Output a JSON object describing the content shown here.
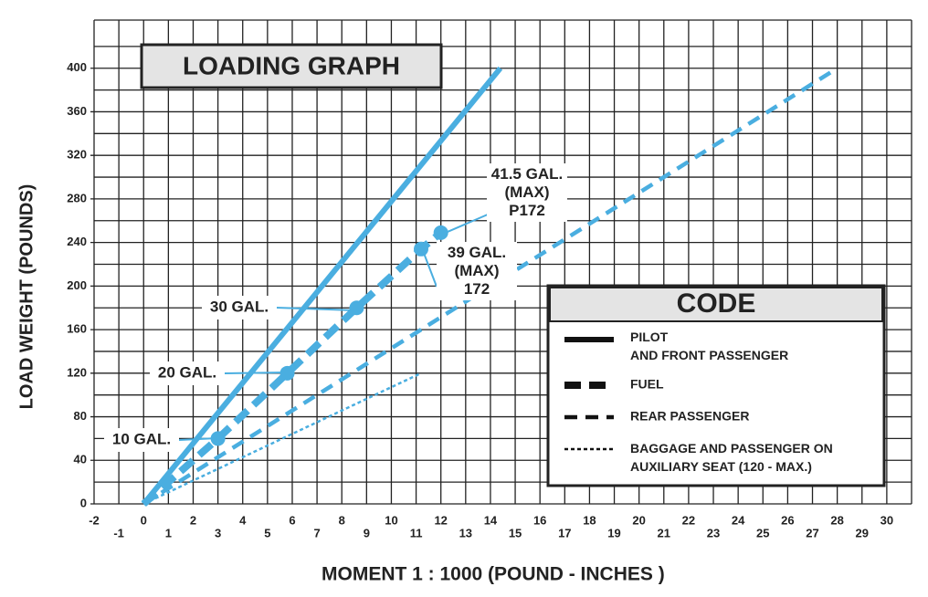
{
  "chart_data": {
    "type": "line",
    "title": "LOADING GRAPH",
    "x_label": "MOMENT  1 : 1000 (POUND - INCHES )",
    "y_label": "LOAD WEIGHT (POUNDS)",
    "xlim": [
      -2,
      31
    ],
    "ylim": [
      0,
      440
    ],
    "xticks": [
      -2,
      -1,
      0,
      1,
      2,
      3,
      4,
      5,
      6,
      7,
      8,
      9,
      10,
      11,
      12,
      13,
      14,
      15,
      16,
      17,
      18,
      19,
      20,
      21,
      22,
      23,
      24,
      25,
      26,
      27,
      28,
      29,
      30
    ],
    "yticks": [
      0,
      40,
      80,
      120,
      160,
      200,
      240,
      280,
      320,
      360,
      400
    ],
    "minor_yticks": [
      20,
      60,
      100,
      140,
      180,
      220,
      260,
      300,
      340,
      380,
      420
    ],
    "grid": true,
    "legend_title": "CODE",
    "legend_position": "lower right",
    "series": [
      {
        "name": "PILOT\nAND FRONT PASSENGER",
        "color": "#4aaee0",
        "style": "solid",
        "x": [
          0,
          14.4
        ],
        "values": [
          0,
          400
        ]
      },
      {
        "name": "FUEL",
        "color": "#4aaee0",
        "style": "thick-dash",
        "x": [
          0,
          3.0,
          5.8,
          8.6,
          11.2,
          12.0
        ],
        "values": [
          0,
          60,
          120,
          180,
          234,
          249
        ]
      },
      {
        "name": "REAR PASSENGER",
        "color": "#4aaee0",
        "style": "dash",
        "x": [
          0,
          28.0
        ],
        "values": [
          0,
          400
        ]
      },
      {
        "name": "BAGGAGE AND PASSENGER ON\nAUXILIARY SEAT (120 - MAX.)",
        "color": "#4aaee0",
        "style": "dot",
        "x": [
          0,
          11.2
        ],
        "values": [
          0,
          120
        ]
      }
    ],
    "annotations": [
      "10 GAL.",
      "20 GAL.",
      "30 GAL.",
      "39 GAL.\n(MAX)\n172",
      "41.5 GAL.\n(MAX)\nP172"
    ]
  }
}
